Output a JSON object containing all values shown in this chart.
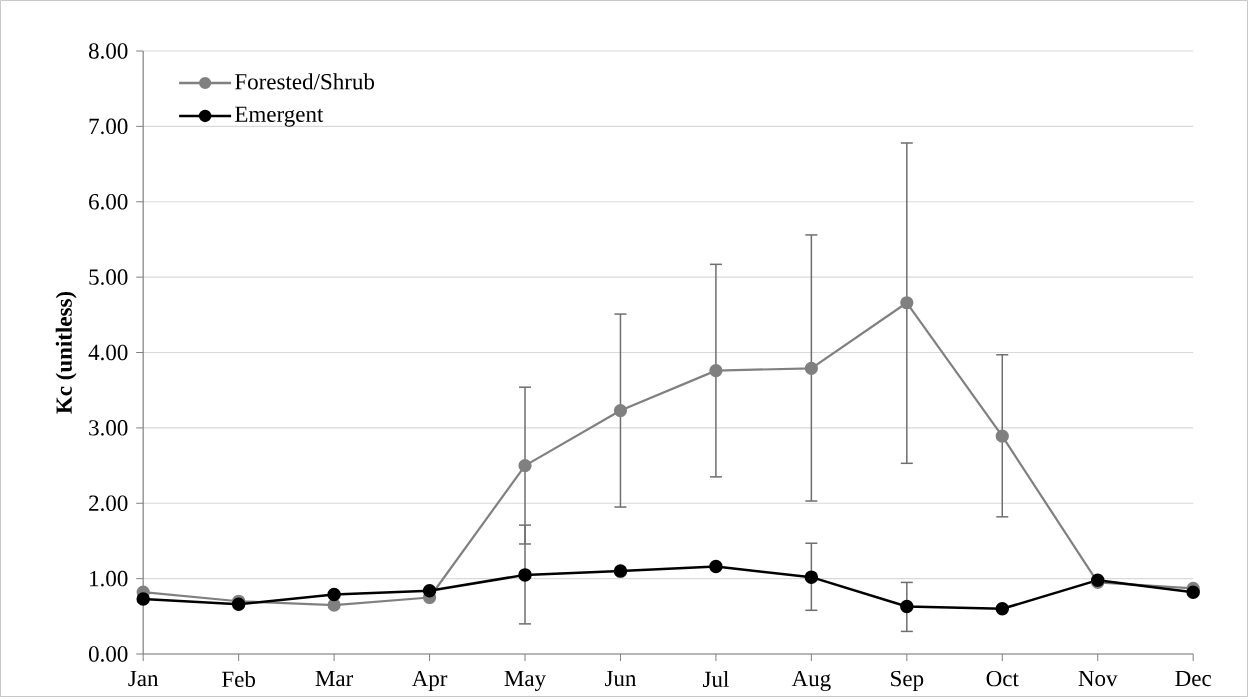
{
  "chart_data": {
    "type": "line",
    "ylabel": "Kc (unitless)",
    "categories": [
      "Jan",
      "Feb",
      "Mar",
      "Apr",
      "May",
      "Jun",
      "Jul",
      "Aug",
      "Sep",
      "Oct",
      "Nov",
      "Dec"
    ],
    "series": [
      {
        "name": "Forested/Shrub",
        "color": "#808080",
        "values": [
          0.82,
          0.7,
          0.65,
          0.75,
          2.5,
          3.23,
          3.76,
          3.79,
          4.66,
          2.89,
          0.95,
          0.87
        ],
        "errors": [
          null,
          null,
          null,
          null,
          [
            1.46,
            3.54
          ],
          [
            1.95,
            4.51
          ],
          [
            2.35,
            5.17
          ],
          [
            2.03,
            5.56
          ],
          [
            2.53,
            6.78
          ],
          [
            1.82,
            3.97
          ],
          null,
          null
        ]
      },
      {
        "name": "Emergent",
        "color": "#000000",
        "values": [
          0.73,
          0.66,
          0.79,
          0.84,
          1.05,
          1.1,
          1.16,
          1.02,
          0.63,
          0.6,
          0.98,
          0.82
        ],
        "errors": [
          null,
          null,
          null,
          null,
          [
            0.4,
            1.71
          ],
          null,
          null,
          [
            0.58,
            1.47
          ],
          [
            0.3,
            0.95
          ],
          null,
          null,
          null
        ]
      }
    ],
    "ylim": [
      0,
      8
    ],
    "yticks": [
      {
        "value": 0,
        "label": "0.00"
      },
      {
        "value": 1,
        "label": "1.00"
      },
      {
        "value": 2,
        "label": "2.00"
      },
      {
        "value": 3,
        "label": "3.00"
      },
      {
        "value": 4,
        "label": "4.00"
      },
      {
        "value": 5,
        "label": "5.00"
      },
      {
        "value": 6,
        "label": "6.00"
      },
      {
        "value": 7,
        "label": "7.00"
      },
      {
        "value": 8,
        "label": "8.00"
      }
    ],
    "grid": "y",
    "legend": "top left",
    "marker": "circle",
    "line_style": "solid"
  }
}
